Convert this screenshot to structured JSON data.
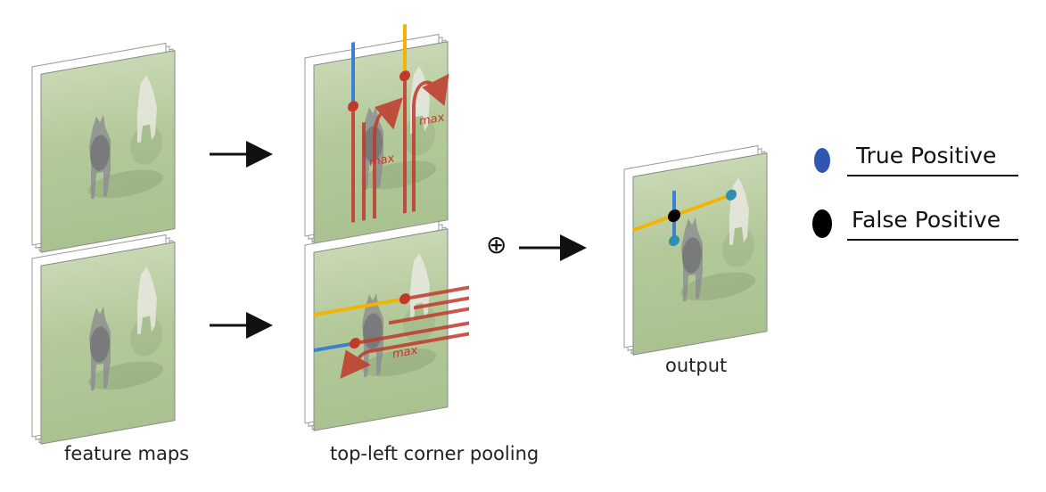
{
  "captions": {
    "feature_maps": "feature maps",
    "pooling": "top-left corner pooling",
    "output": "output"
  },
  "annotations": {
    "max": "max"
  },
  "operator": "⊕",
  "legend": {
    "true_positive": "True Positive",
    "false_positive": "False Positive"
  },
  "colors": {
    "background_image": "#b6cc9a",
    "grass": "#9fbc82",
    "red_path": "#c0392b",
    "blue_line": "#3f7fd0",
    "yellow_line": "#f2b400",
    "true_positive": "#2f56b0",
    "false_positive": "#000000",
    "arrow": "#111111"
  }
}
